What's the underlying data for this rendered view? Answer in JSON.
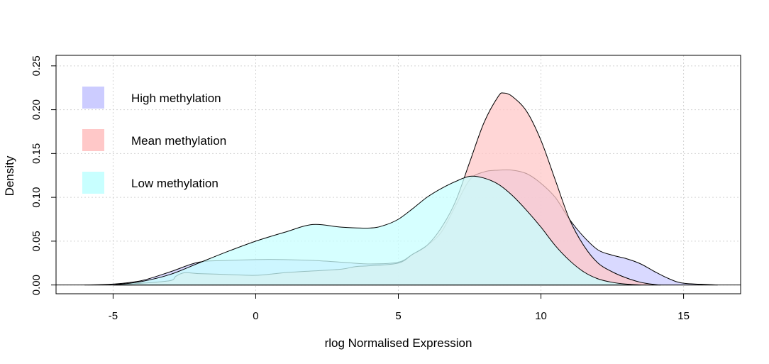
{
  "chart_data": {
    "type": "area",
    "title": "",
    "xlabel": "rlog Normalised Expression",
    "ylabel": "Density",
    "xlim": [
      -7,
      17
    ],
    "ylim": [
      -0.01,
      0.262
    ],
    "x_ticks": [
      -5,
      0,
      5,
      10,
      15
    ],
    "y_ticks": [
      0.0,
      0.05,
      0.1,
      0.15,
      0.2,
      0.25
    ],
    "x_tick_labels": [
      "-5",
      "0",
      "5",
      "10",
      "15"
    ],
    "y_tick_labels": [
      "0.00",
      "0.05",
      "0.10",
      "0.15",
      "0.20",
      "0.25"
    ],
    "grid": true,
    "legend_position": "top-left",
    "series": [
      {
        "name": "High methylation",
        "color": "#ccccff",
        "points": [
          [
            -6,
            0
          ],
          [
            -5,
            0.001
          ],
          [
            -4,
            0.005
          ],
          [
            -3,
            0.015
          ],
          [
            -2,
            0.026
          ],
          [
            -1,
            0.028
          ],
          [
            0,
            0.029
          ],
          [
            1,
            0.029
          ],
          [
            2,
            0.028
          ],
          [
            3,
            0.026
          ],
          [
            4,
            0.024
          ],
          [
            5,
            0.026
          ],
          [
            5.5,
            0.035
          ],
          [
            6,
            0.045
          ],
          [
            6.5,
            0.06
          ],
          [
            7,
            0.09
          ],
          [
            7.5,
            0.12
          ],
          [
            8,
            0.129
          ],
          [
            8.5,
            0.131
          ],
          [
            9,
            0.131
          ],
          [
            9.5,
            0.127
          ],
          [
            10,
            0.116
          ],
          [
            10.5,
            0.1
          ],
          [
            11,
            0.075
          ],
          [
            11.5,
            0.055
          ],
          [
            12,
            0.04
          ],
          [
            12.5,
            0.034
          ],
          [
            13,
            0.03
          ],
          [
            13.5,
            0.024
          ],
          [
            14,
            0.015
          ],
          [
            14.5,
            0.007
          ],
          [
            15,
            0.002
          ],
          [
            16,
            0.0003
          ],
          [
            16.2,
            0
          ]
        ]
      },
      {
        "name": "Mean methylation",
        "color": "#ffc8c8",
        "points": [
          [
            -5,
            0
          ],
          [
            -4,
            0.002
          ],
          [
            -3,
            0.005
          ],
          [
            -2.8,
            0.01
          ],
          [
            -2.5,
            0.014
          ],
          [
            -2,
            0.013
          ],
          [
            -1,
            0.012
          ],
          [
            0,
            0.011
          ],
          [
            1,
            0.014
          ],
          [
            2,
            0.016
          ],
          [
            3,
            0.018
          ],
          [
            3.5,
            0.021
          ],
          [
            4,
            0.022
          ],
          [
            5,
            0.025
          ],
          [
            5.5,
            0.035
          ],
          [
            6,
            0.045
          ],
          [
            6.5,
            0.065
          ],
          [
            7,
            0.095
          ],
          [
            7.5,
            0.14
          ],
          [
            8,
            0.185
          ],
          [
            8.5,
            0.215
          ],
          [
            8.7,
            0.219
          ],
          [
            9,
            0.215
          ],
          [
            9.5,
            0.198
          ],
          [
            10,
            0.165
          ],
          [
            10.5,
            0.12
          ],
          [
            11,
            0.075
          ],
          [
            11.5,
            0.045
          ],
          [
            12,
            0.025
          ],
          [
            12.5,
            0.015
          ],
          [
            13,
            0.008
          ],
          [
            13.5,
            0.003
          ],
          [
            14,
            0.0005
          ],
          [
            14.2,
            0
          ]
        ]
      },
      {
        "name": "Low methylation",
        "color": "#c8ffff",
        "points": [
          [
            -5,
            0
          ],
          [
            -4,
            0.004
          ],
          [
            -3,
            0.012
          ],
          [
            -2,
            0.025
          ],
          [
            -1,
            0.038
          ],
          [
            0,
            0.05
          ],
          [
            1,
            0.06
          ],
          [
            2,
            0.069
          ],
          [
            3,
            0.066
          ],
          [
            4,
            0.065
          ],
          [
            4.5,
            0.068
          ],
          [
            5,
            0.075
          ],
          [
            5.5,
            0.087
          ],
          [
            6,
            0.1
          ],
          [
            6.5,
            0.11
          ],
          [
            7,
            0.118
          ],
          [
            7.5,
            0.124
          ],
          [
            8,
            0.122
          ],
          [
            8.5,
            0.115
          ],
          [
            9,
            0.102
          ],
          [
            9.5,
            0.085
          ],
          [
            10,
            0.066
          ],
          [
            10.5,
            0.045
          ],
          [
            11,
            0.028
          ],
          [
            11.5,
            0.015
          ],
          [
            12,
            0.007
          ],
          [
            12.5,
            0.003
          ],
          [
            13,
            0.001
          ],
          [
            13.5,
            0
          ]
        ]
      }
    ]
  }
}
